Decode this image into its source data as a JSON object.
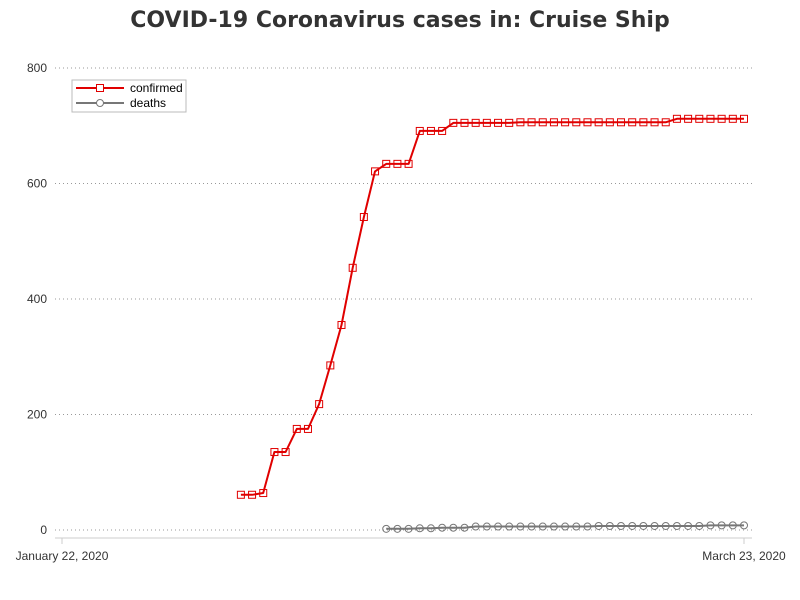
{
  "chart_data": {
    "type": "line",
    "title": "COVID-19 Coronavirus cases in: Cruise Ship",
    "xlabel": "",
    "ylabel": "",
    "x_start": "2020-01-22",
    "x_end": "2020-03-23",
    "x_tick_labels": [
      "January 22, 2020",
      "March 23, 2020"
    ],
    "ylim": [
      0,
      800
    ],
    "y_ticks": [
      0,
      200,
      400,
      600,
      800
    ],
    "grid": "horizontal-dotted",
    "legend_position": "top-left",
    "series": [
      {
        "name": "confirmed",
        "color": "#e00000",
        "marker": "square",
        "points": [
          [
            "2020-02-07",
            61
          ],
          [
            "2020-02-08",
            61
          ],
          [
            "2020-02-09",
            64
          ],
          [
            "2020-02-10",
            135
          ],
          [
            "2020-02-11",
            135
          ],
          [
            "2020-02-12",
            175
          ],
          [
            "2020-02-13",
            175
          ],
          [
            "2020-02-14",
            218
          ],
          [
            "2020-02-15",
            285
          ],
          [
            "2020-02-16",
            355
          ],
          [
            "2020-02-17",
            454
          ],
          [
            "2020-02-18",
            542
          ],
          [
            "2020-02-19",
            621
          ],
          [
            "2020-02-20",
            634
          ],
          [
            "2020-02-21",
            634
          ],
          [
            "2020-02-22",
            634
          ],
          [
            "2020-02-23",
            691
          ],
          [
            "2020-02-24",
            691
          ],
          [
            "2020-02-25",
            691
          ],
          [
            "2020-02-26",
            705
          ],
          [
            "2020-02-27",
            705
          ],
          [
            "2020-02-28",
            705
          ],
          [
            "2020-02-29",
            705
          ],
          [
            "2020-03-01",
            705
          ],
          [
            "2020-03-02",
            705
          ],
          [
            "2020-03-03",
            706
          ],
          [
            "2020-03-04",
            706
          ],
          [
            "2020-03-05",
            706
          ],
          [
            "2020-03-06",
            706
          ],
          [
            "2020-03-07",
            706
          ],
          [
            "2020-03-08",
            706
          ],
          [
            "2020-03-09",
            706
          ],
          [
            "2020-03-10",
            706
          ],
          [
            "2020-03-11",
            706
          ],
          [
            "2020-03-12",
            706
          ],
          [
            "2020-03-13",
            706
          ],
          [
            "2020-03-14",
            706
          ],
          [
            "2020-03-15",
            706
          ],
          [
            "2020-03-16",
            706
          ],
          [
            "2020-03-17",
            712
          ],
          [
            "2020-03-18",
            712
          ],
          [
            "2020-03-19",
            712
          ],
          [
            "2020-03-20",
            712
          ],
          [
            "2020-03-21",
            712
          ],
          [
            "2020-03-22",
            712
          ],
          [
            "2020-03-23",
            712
          ]
        ]
      },
      {
        "name": "deaths",
        "color": "#777777",
        "marker": "circle",
        "points": [
          [
            "2020-02-20",
            2
          ],
          [
            "2020-02-21",
            2
          ],
          [
            "2020-02-22",
            2
          ],
          [
            "2020-02-23",
            3
          ],
          [
            "2020-02-24",
            3
          ],
          [
            "2020-02-25",
            4
          ],
          [
            "2020-02-26",
            4
          ],
          [
            "2020-02-27",
            4
          ],
          [
            "2020-02-28",
            6
          ],
          [
            "2020-02-29",
            6
          ],
          [
            "2020-03-01",
            6
          ],
          [
            "2020-03-02",
            6
          ],
          [
            "2020-03-03",
            6
          ],
          [
            "2020-03-04",
            6
          ],
          [
            "2020-03-05",
            6
          ],
          [
            "2020-03-06",
            6
          ],
          [
            "2020-03-07",
            6
          ],
          [
            "2020-03-08",
            6
          ],
          [
            "2020-03-09",
            6
          ],
          [
            "2020-03-10",
            7
          ],
          [
            "2020-03-11",
            7
          ],
          [
            "2020-03-12",
            7
          ],
          [
            "2020-03-13",
            7
          ],
          [
            "2020-03-14",
            7
          ],
          [
            "2020-03-15",
            7
          ],
          [
            "2020-03-16",
            7
          ],
          [
            "2020-03-17",
            7
          ],
          [
            "2020-03-18",
            7
          ],
          [
            "2020-03-19",
            7
          ],
          [
            "2020-03-20",
            8
          ],
          [
            "2020-03-21",
            8
          ],
          [
            "2020-03-22",
            8
          ],
          [
            "2020-03-23",
            8
          ]
        ]
      }
    ]
  }
}
